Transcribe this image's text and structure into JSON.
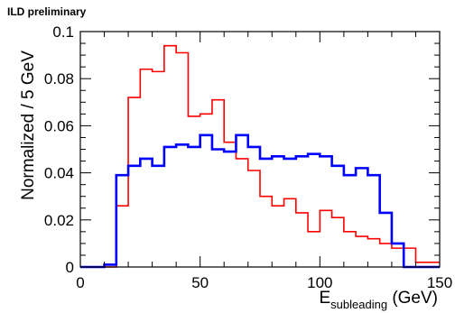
{
  "header": "ILD preliminary",
  "chart_data": {
    "type": "line",
    "step": true,
    "title": "",
    "xlabel_main": "E",
    "xlabel_sub": "subleading",
    "xlabel_unit": " (GeV)",
    "ylabel": "Normalized / 5 GeV",
    "xlim": [
      0,
      150
    ],
    "ylim": [
      0,
      0.1
    ],
    "xticks": [
      0,
      50,
      100,
      150
    ],
    "yticks": [
      0,
      0.02,
      0.04,
      0.06,
      0.08,
      0.1
    ],
    "ytick_labels": [
      "0",
      "0.02",
      "0.04",
      "0.06",
      "0.08",
      "0.1"
    ],
    "bin_edges": [
      0,
      5,
      10,
      15,
      20,
      25,
      30,
      35,
      40,
      45,
      50,
      55,
      60,
      65,
      70,
      75,
      80,
      85,
      90,
      95,
      100,
      105,
      110,
      115,
      120,
      125,
      130,
      135,
      140,
      145,
      150
    ],
    "series": [
      {
        "color": "#ff0000",
        "values": [
          0.0,
          0.0,
          0.0,
          0.026,
          0.072,
          0.084,
          0.083,
          0.094,
          0.091,
          0.064,
          0.065,
          0.071,
          0.053,
          0.046,
          0.041,
          0.03,
          0.026,
          0.029,
          0.023,
          0.015,
          0.024,
          0.021,
          0.015,
          0.013,
          0.012,
          0.01,
          0.008,
          0.008,
          0.002,
          0.002
        ]
      },
      {
        "color": "#0000ff",
        "values": [
          0.0,
          0.0,
          0.0,
          0.0,
          0.0,
          0.0,
          0.0,
          0.0,
          0.0,
          0.0,
          0.0,
          0.0,
          0.0,
          0.0,
          0.0,
          0.0,
          0.0,
          0.0,
          0.0,
          0.0,
          0.0,
          0.0,
          0.0,
          0.0,
          0.0,
          0.0,
          0.0,
          0.0,
          0.0,
          0.0
        ],
        "values_actual": [
          0.0,
          0.0,
          0.001,
          0.039,
          0.043,
          0.046,
          0.043,
          0.051,
          0.052,
          0.051,
          0.056,
          0.05,
          0.049,
          0.056,
          0.051,
          0.046,
          0.047,
          0.046,
          0.047,
          0.048,
          0.047,
          0.043,
          0.039,
          0.042,
          0.039,
          0.023,
          0.01,
          0.0,
          0.0,
          0.0
        ]
      }
    ]
  }
}
